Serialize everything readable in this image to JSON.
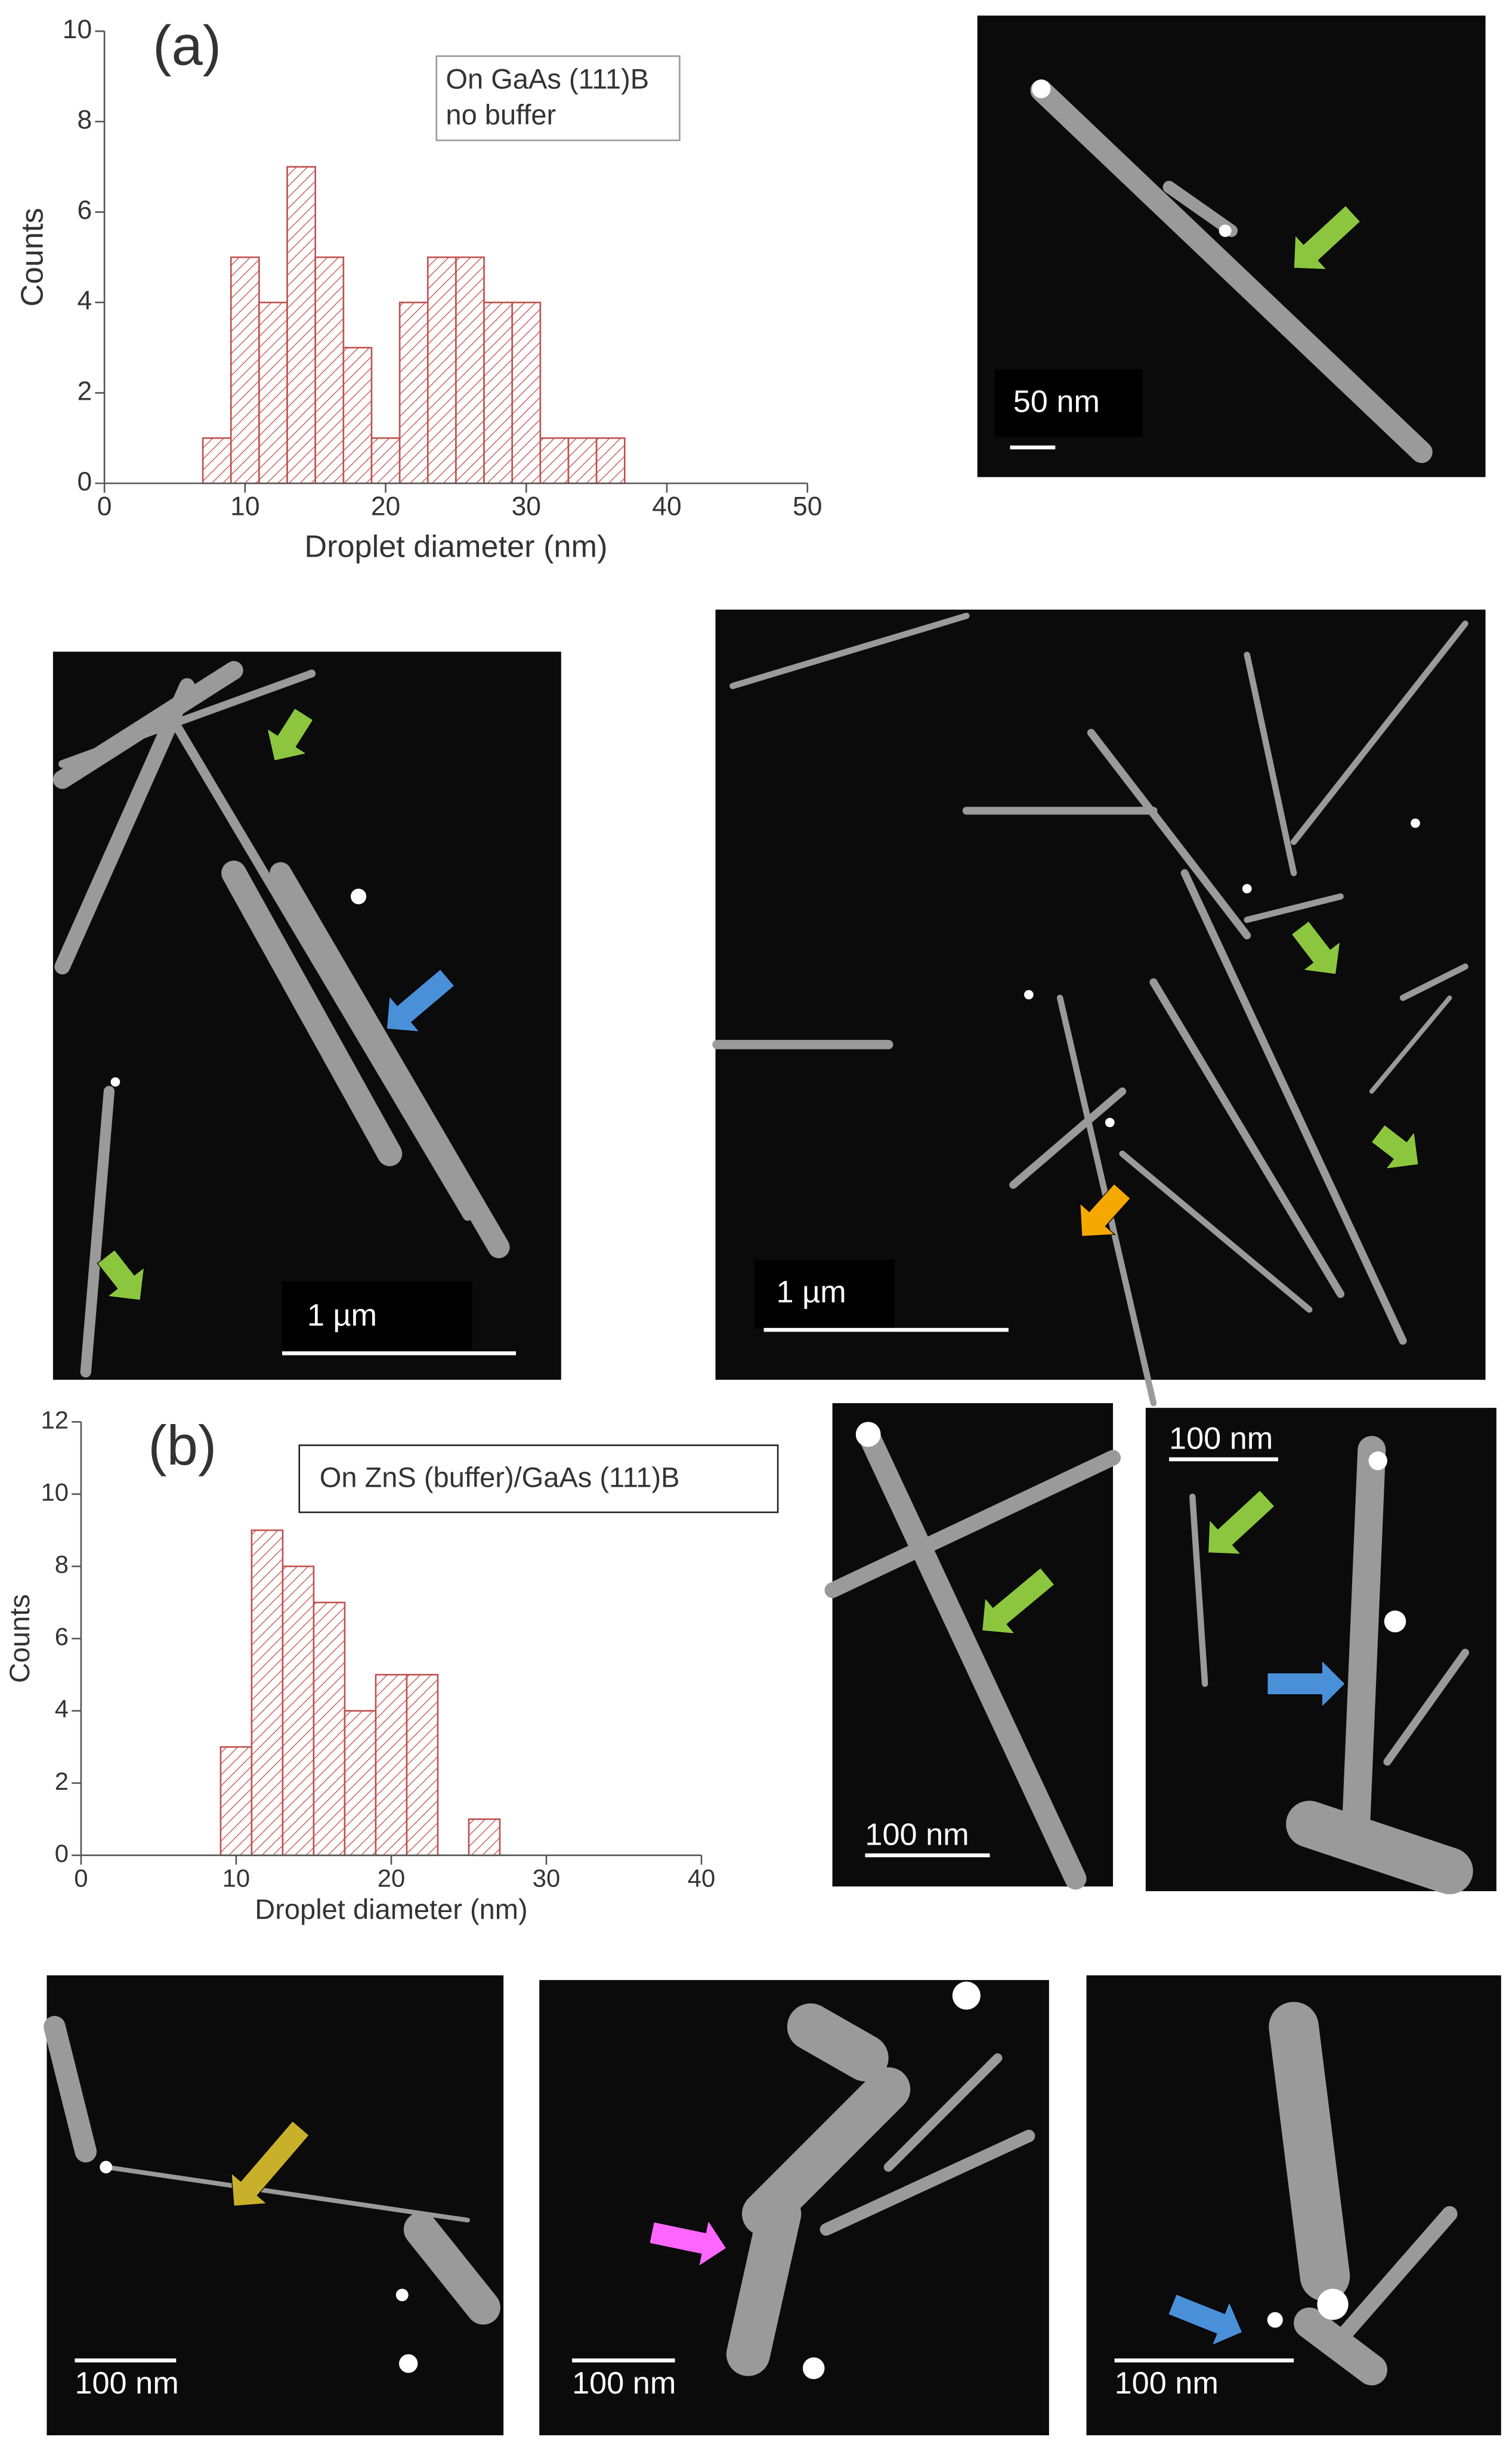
{
  "panels": [
    {
      "label": "(a)",
      "note": [
        "On GaAs (111)B",
        "no buffer"
      ]
    },
    {
      "label": "(b)",
      "note": [
        "On ZnS (buffer)/GaAs (111)B"
      ]
    }
  ],
  "images": [
    {
      "scale": "50 nm"
    },
    {
      "scale": "1 µm"
    },
    {
      "scale": "1 µm"
    },
    {
      "scale": "100 nm"
    },
    {
      "scale": "100 nm"
    },
    {
      "scale": "100 nm"
    },
    {
      "scale": "100 nm"
    },
    {
      "scale": "100 nm"
    }
  ],
  "chart_data": [
    {
      "type": "histogram",
      "xlabel": "Droplet diameter (nm)",
      "ylabel": "Counts",
      "bins": [
        7,
        9,
        11,
        13,
        15,
        17,
        19,
        21,
        23,
        25,
        27,
        29,
        31,
        33,
        35,
        37
      ],
      "counts": [
        1,
        5,
        4,
        7,
        5,
        3,
        1,
        4,
        5,
        5,
        4,
        4,
        1,
        1,
        1
      ],
      "xlim": [
        0,
        50
      ],
      "xticks": [
        0,
        10,
        20,
        30,
        40,
        50
      ],
      "ylim": [
        0,
        10
      ],
      "yticks": [
        0,
        2,
        4,
        6,
        8,
        10
      ],
      "color": "#c0504d"
    },
    {
      "type": "histogram",
      "xlabel": "Droplet diameter (nm)",
      "ylabel": "Counts",
      "bins": [
        9,
        11,
        13,
        15,
        17,
        19,
        21,
        23,
        25,
        27
      ],
      "counts": [
        3,
        9,
        8,
        7,
        4,
        5,
        5,
        0,
        1
      ],
      "xlim": [
        0,
        40
      ],
      "xticks": [
        0,
        10,
        20,
        30,
        40
      ],
      "ylim": [
        0,
        12
      ],
      "yticks": [
        0,
        2,
        4,
        6,
        8,
        10,
        12
      ],
      "color": "#c0504d"
    }
  ]
}
